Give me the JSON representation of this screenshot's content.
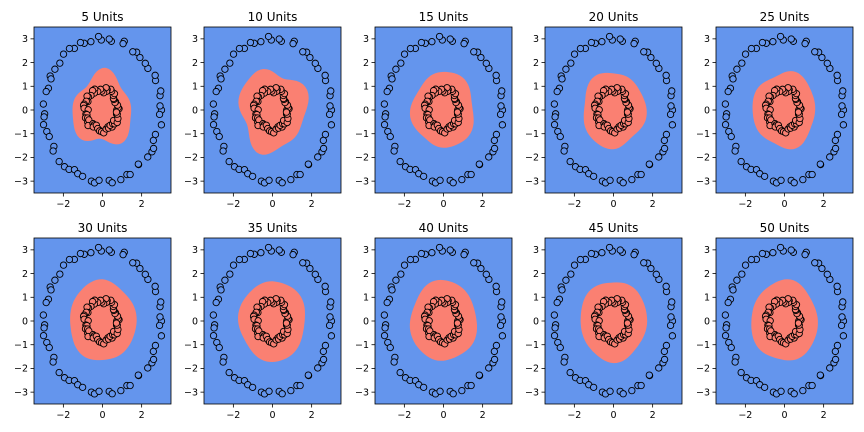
{
  "figure": {
    "panel_titles": [
      "5 Units",
      "10 Units",
      "15 Units",
      "20 Units",
      "25 Units",
      "30 Units",
      "35 Units",
      "40 Units",
      "45 Units",
      "50 Units"
    ]
  },
  "chart_data": {
    "type": "scatter",
    "layout": "2 rows x 5 columns of small multiples",
    "panels_share": "same data points in every panel; only the red decision region changes",
    "xlim": [
      -3.5,
      3.5
    ],
    "ylim": [
      -3.5,
      3.5
    ],
    "xticks": [
      -2,
      0,
      2
    ],
    "yticks": [
      -3,
      -2,
      -1,
      0,
      1,
      2,
      3
    ],
    "grid": false,
    "legend": "none",
    "colors": {
      "outer_region": "#6495ed",
      "inner_region": "#fa8072",
      "point_outer": "#6495ed",
      "point_inner": "#fa8072",
      "point_edge": "#000000"
    },
    "classes": [
      {
        "label": "outer ring",
        "radius": 3.0,
        "approx_points": 60,
        "color": "#6495ed"
      },
      {
        "label": "inner ring",
        "radius": 0.85,
        "approx_points": 60,
        "color": "#fa8072"
      }
    ],
    "panels": [
      {
        "title": "5 Units",
        "hidden_units": 5,
        "boundary_radius_approx": 1.5
      },
      {
        "title": "10 Units",
        "hidden_units": 10,
        "boundary_radius_approx": 1.7
      },
      {
        "title": "15 Units",
        "hidden_units": 15,
        "boundary_radius_approx": 1.6
      },
      {
        "title": "20 Units",
        "hidden_units": 20,
        "boundary_radius_approx": 1.6
      },
      {
        "title": "25 Units",
        "hidden_units": 25,
        "boundary_radius_approx": 1.6
      },
      {
        "title": "30 Units",
        "hidden_units": 30,
        "boundary_radius_approx": 1.7
      },
      {
        "title": "35 Units",
        "hidden_units": 35,
        "boundary_radius_approx": 1.7
      },
      {
        "title": "40 Units",
        "hidden_units": 40,
        "boundary_radius_approx": 1.7
      },
      {
        "title": "45 Units",
        "hidden_units": 45,
        "boundary_radius_approx": 1.7
      },
      {
        "title": "50 Units",
        "hidden_units": 50,
        "boundary_radius_approx": 1.7
      }
    ]
  }
}
